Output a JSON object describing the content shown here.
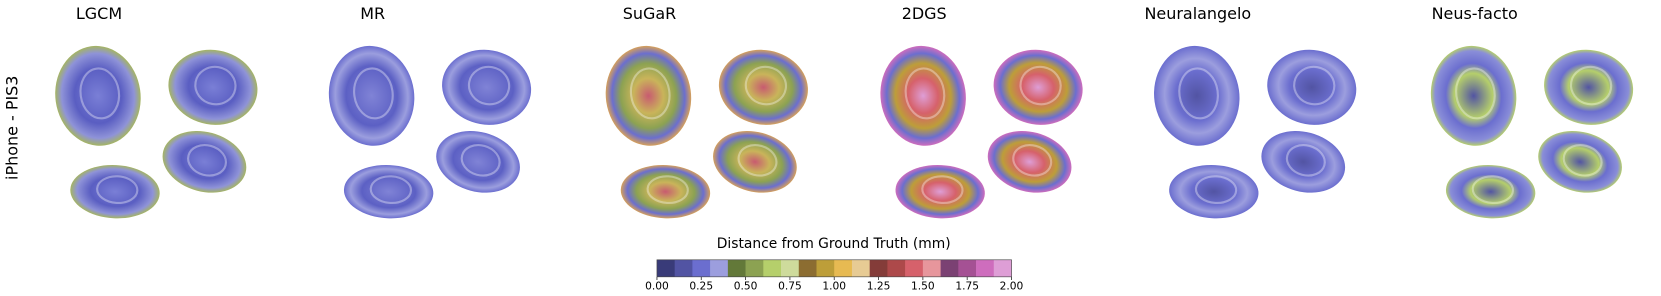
{
  "columns": [
    "LGCM",
    "MR",
    "SuGaR",
    "2DGS",
    "Neuralangelo",
    "Neus-facto"
  ],
  "row_label": "iPhone - PIS3",
  "colorbar": {
    "title": "Distance from Ground Truth (mm)",
    "lim": [
      0,
      2
    ],
    "ticks": [
      {
        "value": 0,
        "label": "0.00"
      },
      {
        "value": 0.25,
        "label": "0.25"
      },
      {
        "value": 0.5,
        "label": "0.50"
      },
      {
        "value": 0.75,
        "label": "0.75"
      },
      {
        "value": 1,
        "label": "1.00"
      },
      {
        "value": 1.25,
        "label": "1.25"
      },
      {
        "value": 1.5,
        "label": "1.50"
      },
      {
        "value": 1.75,
        "label": "1.75"
      },
      {
        "value": 2,
        "label": "2.00"
      }
    ],
    "colors": [
      "#393b79",
      "#5254a3",
      "#6b6ecf",
      "#9c9ede",
      "#637939",
      "#8ca252",
      "#b5cf6b",
      "#cedb9c",
      "#8c6d31",
      "#bd9e39",
      "#e7ba52",
      "#e7cb94",
      "#843c39",
      "#ad494a",
      "#d6616b",
      "#e7969c",
      "#7b4173",
      "#a55194",
      "#ce6dbd",
      "#de9ed6"
    ]
  }
}
